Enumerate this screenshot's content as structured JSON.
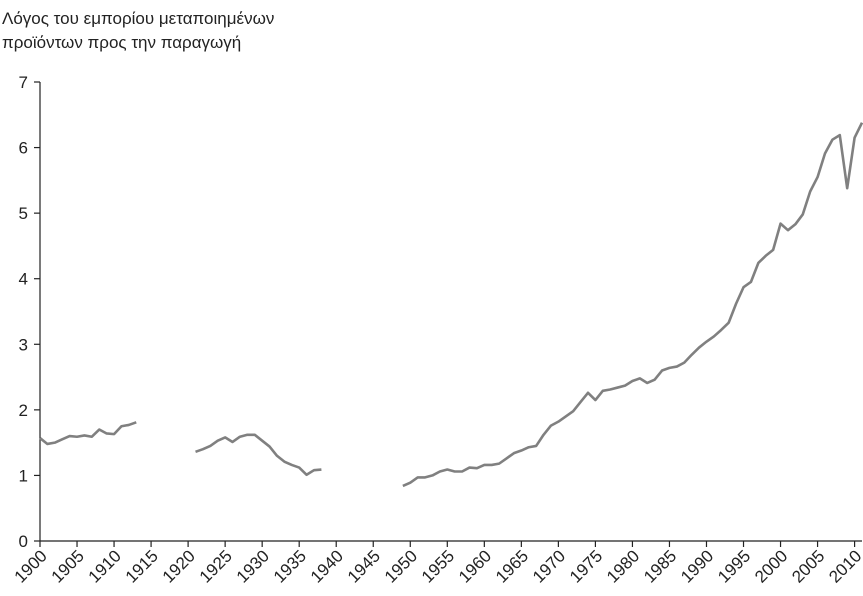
{
  "chart_data": {
    "type": "line",
    "title": [
      "Λόγος του εμπορίου μεταποιημένων",
      "προϊόντων προς την παραγωγή"
    ],
    "x": [
      1900,
      1901,
      1902,
      1903,
      1904,
      1905,
      1906,
      1907,
      1908,
      1909,
      1910,
      1911,
      1912,
      1913,
      1914,
      1915,
      1916,
      1917,
      1918,
      1919,
      1920,
      1921,
      1922,
      1923,
      1924,
      1925,
      1926,
      1927,
      1928,
      1929,
      1930,
      1931,
      1932,
      1933,
      1934,
      1935,
      1936,
      1937,
      1938,
      1939,
      1940,
      1941,
      1942,
      1943,
      1944,
      1945,
      1946,
      1947,
      1948,
      1949,
      1950,
      1951,
      1952,
      1953,
      1954,
      1955,
      1956,
      1957,
      1958,
      1959,
      1960,
      1961,
      1962,
      1963,
      1964,
      1965,
      1966,
      1967,
      1968,
      1969,
      1970,
      1971,
      1972,
      1973,
      1974,
      1975,
      1976,
      1977,
      1978,
      1979,
      1980,
      1981,
      1982,
      1983,
      1984,
      1985,
      1986,
      1987,
      1988,
      1989,
      1990,
      1991,
      1992,
      1993,
      1994,
      1995,
      1996,
      1997,
      1998,
      1999,
      2000,
      2001,
      2002,
      2003,
      2004,
      2005,
      2006,
      2007,
      2008,
      2009,
      2010,
      2011
    ],
    "series": [
      {
        "color": "#808080",
        "values": [
          1.57,
          1.48,
          1.5,
          1.55,
          1.6,
          1.59,
          1.61,
          1.59,
          1.7,
          1.64,
          1.63,
          1.75,
          1.77,
          1.81,
          null,
          null,
          null,
          null,
          null,
          null,
          null,
          1.36,
          1.4,
          1.45,
          1.53,
          1.58,
          1.51,
          1.59,
          1.62,
          1.62,
          1.53,
          1.44,
          1.3,
          1.21,
          1.16,
          1.12,
          1.01,
          1.08,
          1.09,
          null,
          null,
          null,
          null,
          null,
          null,
          null,
          null,
          null,
          null,
          0.84,
          0.89,
          0.97,
          0.97,
          1.0,
          1.06,
          1.09,
          1.06,
          1.06,
          1.12,
          1.11,
          1.16,
          1.16,
          1.18,
          1.26,
          1.34,
          1.38,
          1.43,
          1.45,
          1.62,
          1.76,
          1.82,
          1.9,
          1.98,
          2.12,
          2.26,
          2.15,
          2.29,
          2.31,
          2.34,
          2.37,
          2.44,
          2.48,
          2.41,
          2.46,
          2.6,
          2.64,
          2.66,
          2.72,
          2.84,
          2.95,
          3.04,
          3.12,
          3.22,
          3.33,
          3.62,
          3.87,
          3.95,
          4.24,
          4.35,
          4.44,
          4.84,
          4.74,
          4.83,
          4.98,
          5.33,
          5.55,
          5.91,
          6.12,
          6.19,
          5.38,
          6.15,
          6.38
        ]
      }
    ],
    "xlim": [
      1900,
      2011
    ],
    "xticks": [
      1900,
      1905,
      1910,
      1915,
      1920,
      1925,
      1930,
      1935,
      1940,
      1945,
      1950,
      1955,
      1960,
      1965,
      1970,
      1975,
      1980,
      1985,
      1990,
      1995,
      2000,
      2005,
      2010
    ],
    "ylim": [
      0,
      7
    ],
    "yticks": [
      0,
      1,
      2,
      3,
      4,
      5,
      6,
      7
    ]
  }
}
